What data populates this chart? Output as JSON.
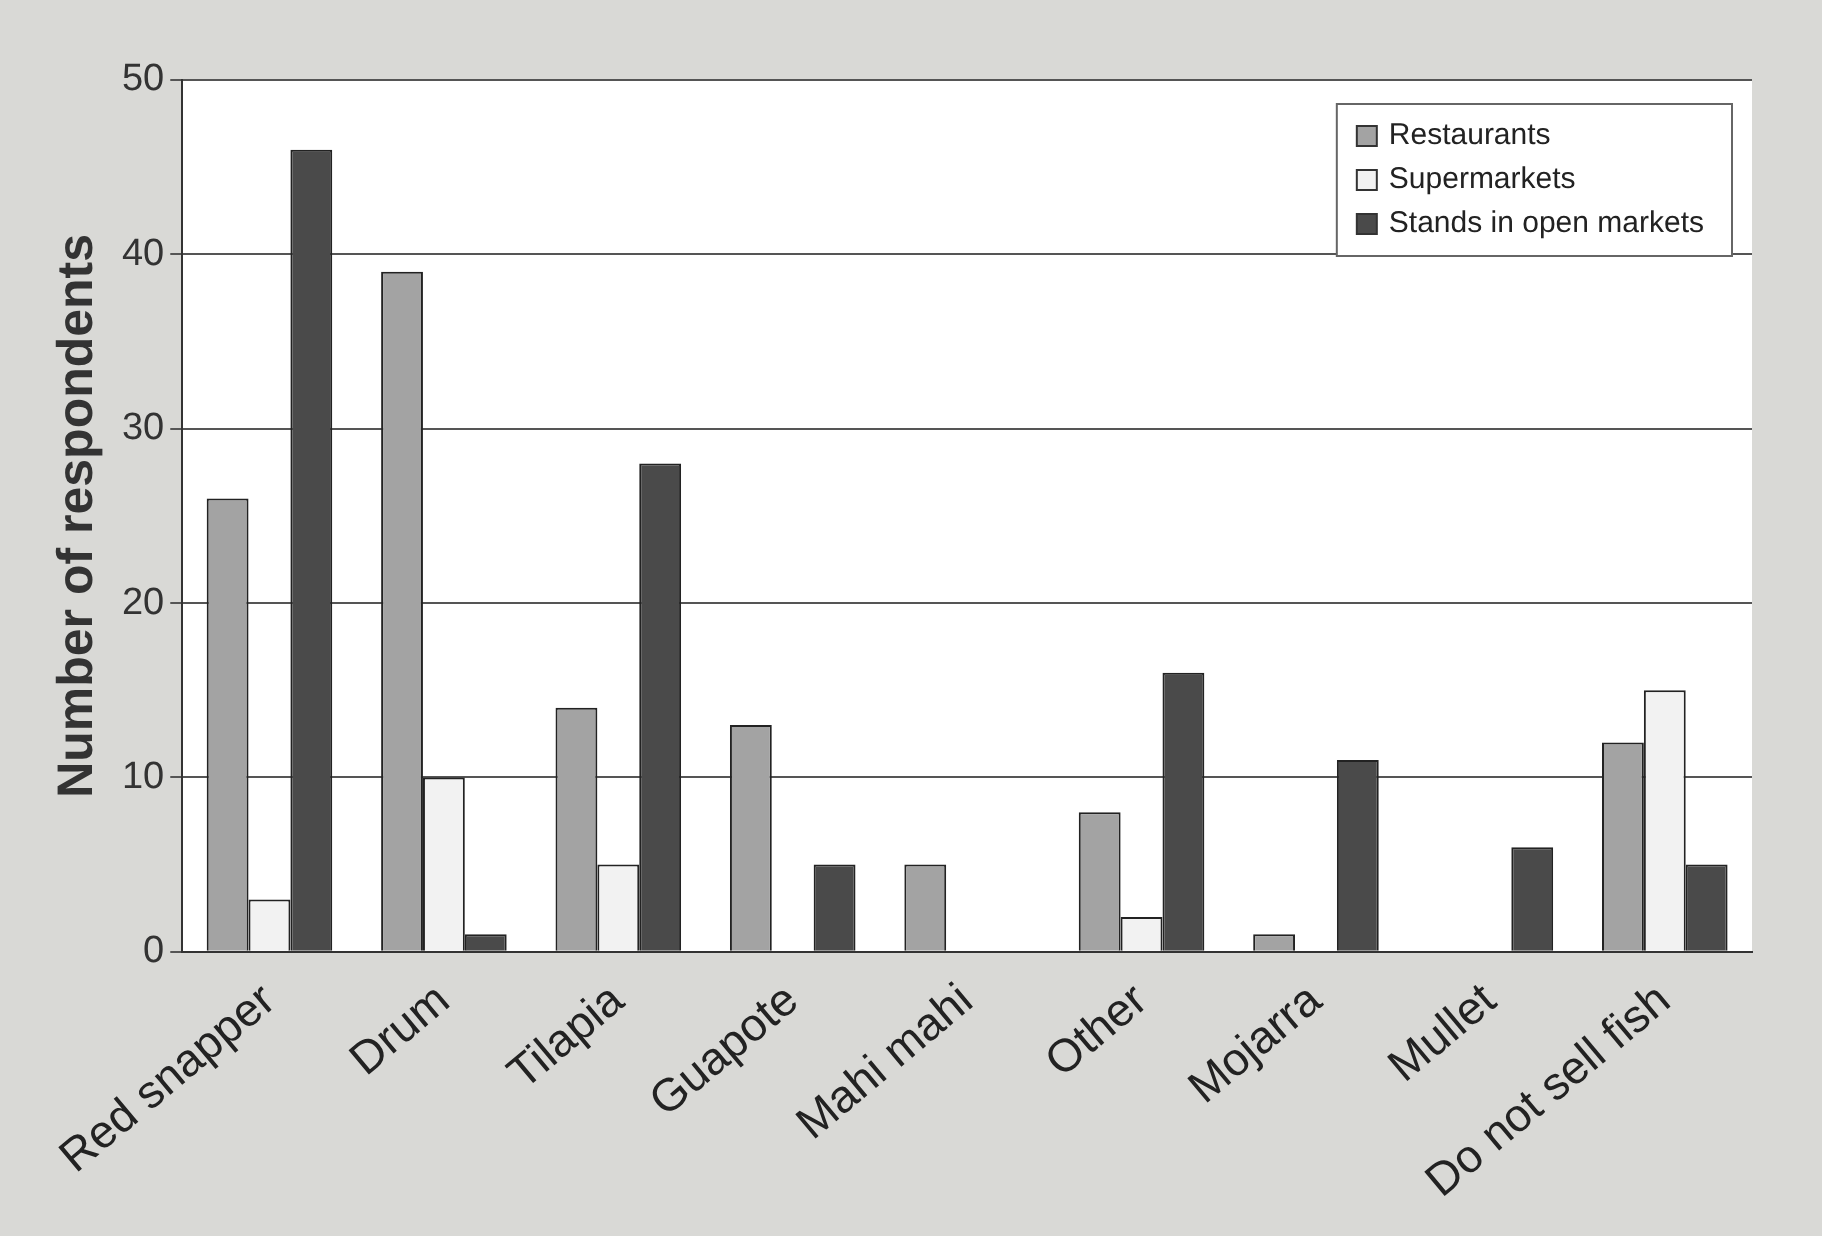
{
  "chart_data": {
    "type": "bar",
    "ylabel": "Number of respondents",
    "categories": [
      "Red snapper",
      "Drum",
      "Tilapia",
      "Guapote",
      "Mahi mahi",
      "Other",
      "Mojarra",
      "Mullet",
      "Do not sell fish"
    ],
    "series": [
      {
        "name": "Restaurants",
        "color": "#a3a3a3",
        "values": [
          26,
          39,
          14,
          13,
          5,
          8,
          1,
          0,
          12
        ]
      },
      {
        "name": "Supermarkets",
        "color": "#f2f2f2",
        "values": [
          3,
          10,
          5,
          0,
          0,
          2,
          0,
          0,
          15
        ]
      },
      {
        "name": "Stands in open markets",
        "color": "#4a4a4a",
        "values": [
          46,
          1,
          28,
          5,
          0,
          16,
          11,
          6,
          5
        ]
      }
    ],
    "ylim": [
      0,
      50
    ],
    "yticks": [
      0,
      10,
      20,
      30,
      40,
      50
    ],
    "grid": "y",
    "legend": "top right"
  }
}
